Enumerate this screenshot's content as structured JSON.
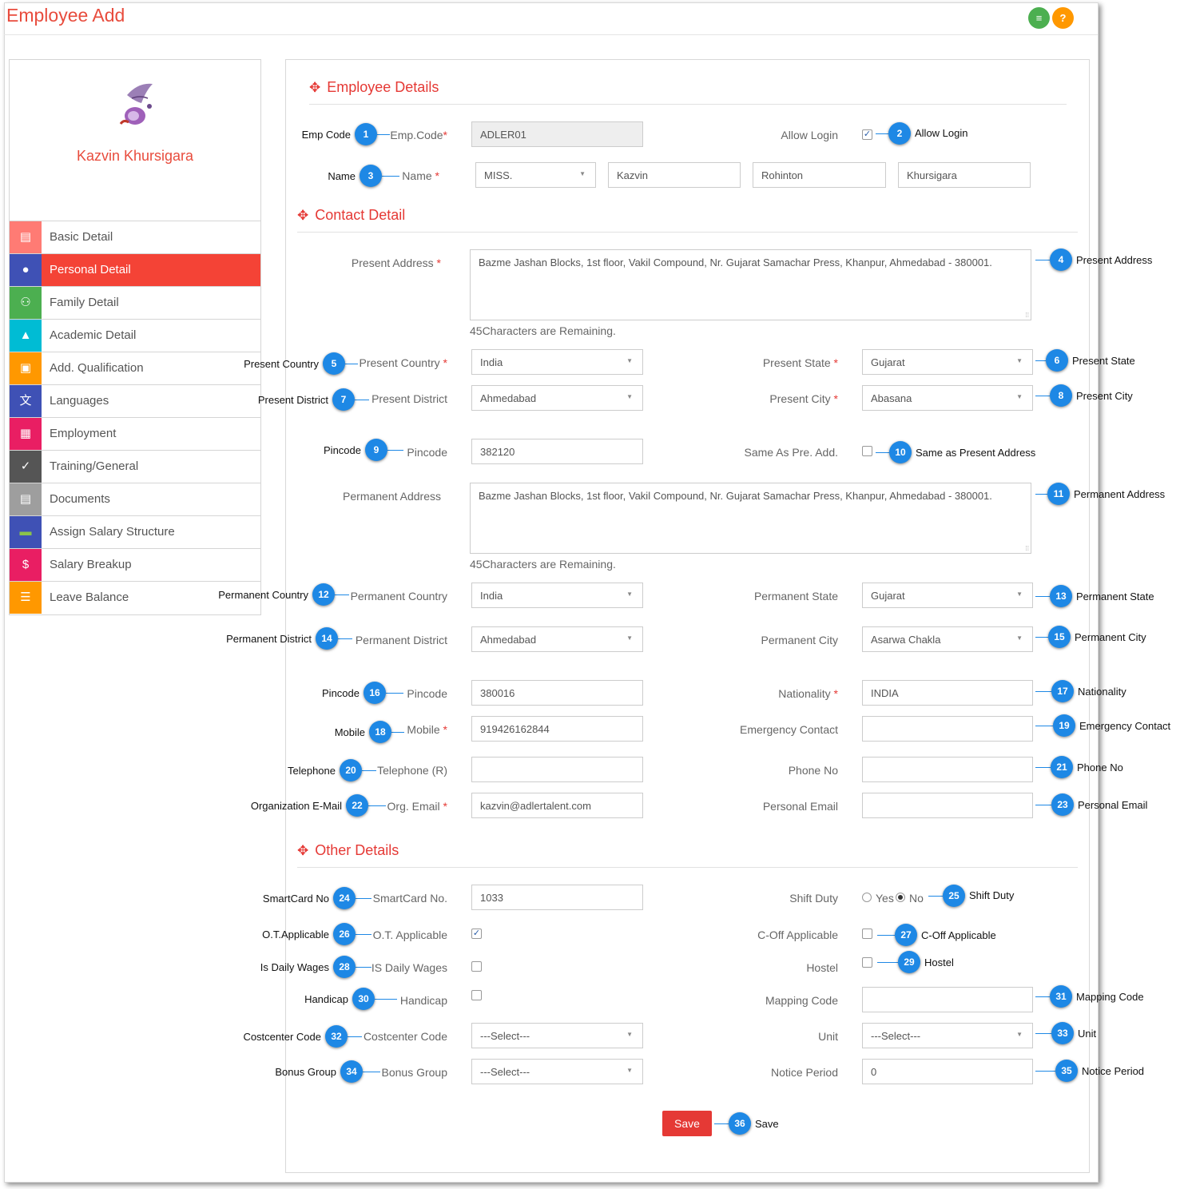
{
  "header": {
    "title": "Employee Add",
    "menu_icon": "menu-icon",
    "help_label": "?"
  },
  "colors": {
    "accent": "#e53935",
    "badge": "#1e88e5",
    "menu_green": "#4caf50",
    "help_orange": "#ff9800"
  },
  "profile": {
    "name": "Kazvin Khursigara",
    "logo": "bird-logo"
  },
  "sidebar": {
    "items": [
      {
        "label": "Basic Detail",
        "icon": "file-icon",
        "color": "#ff7b74"
      },
      {
        "label": "Personal Detail",
        "icon": "person-icon",
        "color": "#3f51b5",
        "active": true
      },
      {
        "label": "Family Detail",
        "icon": "people-icon",
        "color": "#4caf50"
      },
      {
        "label": "Academic Detail",
        "icon": "graduation-cap-icon",
        "color": "#00bcd4"
      },
      {
        "label": "Add. Qualification",
        "icon": "clipboard-icon",
        "color": "#ff9800"
      },
      {
        "label": "Languages",
        "icon": "translate-icon",
        "color": "#3f51b5"
      },
      {
        "label": "Employment",
        "icon": "id-card-icon",
        "color": "#e91e63"
      },
      {
        "label": "Training/General",
        "icon": "checklist-icon",
        "color": "#555555"
      },
      {
        "label": "Documents",
        "icon": "document-icon",
        "color": "#9e9e9e"
      },
      {
        "label": "Assign Salary Structure",
        "icon": "money-icon",
        "color": "#3f51b5"
      },
      {
        "label": "Salary Breakup",
        "icon": "dollar-icon",
        "color": "#e91e63"
      },
      {
        "label": "Leave Balance",
        "icon": "list-icon",
        "color": "#ff9800"
      }
    ]
  },
  "sections": {
    "employee": "Employee Details",
    "contact": "Contact Detail",
    "other": "Other Details"
  },
  "form": {
    "emp_code": {
      "label": "Emp.Code",
      "value": "ADLER01"
    },
    "allow_login": {
      "label": "Allow Login",
      "checked": true
    },
    "name": {
      "label": "Name",
      "title": "MISS.",
      "first": "Kazvin",
      "middle": "Rohinton",
      "last": "Khursigara"
    },
    "present_address": {
      "label": "Present Address",
      "value": "Bazme Jashan Blocks, 1st floor, Vakil Compound, Nr. Gujarat Samachar Press, Khanpur, Ahmedabad - 380001."
    },
    "present_remaining": "45Characters are Remaining.",
    "present_country": {
      "label": "Present Country",
      "value": "India"
    },
    "present_state": {
      "label": "Present State",
      "value": "Gujarat"
    },
    "present_district": {
      "label": "Present District",
      "value": "Ahmedabad"
    },
    "present_city": {
      "label": "Present City",
      "value": "Abasana"
    },
    "pincode": {
      "label": "Pincode",
      "value": "382120"
    },
    "same_as": {
      "label": "Same As Pre. Add.",
      "checked": false
    },
    "permanent_address": {
      "label": "Permanent Address",
      "value": "Bazme Jashan Blocks, 1st floor, Vakil Compound, Nr. Gujarat Samachar Press, Khanpur, Ahmedabad - 380001."
    },
    "permanent_remaining": "45Characters are Remaining.",
    "permanent_country": {
      "label": "Permanent Country",
      "value": "India"
    },
    "permanent_state": {
      "label": "Permanent State",
      "value": "Gujarat"
    },
    "permanent_district": {
      "label": "Permanent District",
      "value": "Ahmedabad"
    },
    "permanent_city": {
      "label": "Permanent City",
      "value": "Asarwa Chakla"
    },
    "perm_pincode": {
      "label": "Pincode",
      "value": "380016"
    },
    "nationality": {
      "label": "Nationality",
      "value": "INDIA"
    },
    "mobile": {
      "label": "Mobile",
      "value": "919426162844"
    },
    "emergency": {
      "label": "Emergency Contact",
      "value": ""
    },
    "telephone": {
      "label": "Telephone (R)",
      "value": ""
    },
    "phone_no": {
      "label": "Phone No",
      "value": ""
    },
    "org_email": {
      "label": "Org. Email",
      "value": "kazvin@adlertalent.com"
    },
    "personal_email": {
      "label": "Personal Email",
      "value": ""
    },
    "smartcard": {
      "label": "SmartCard No.",
      "value": "1033"
    },
    "shift_duty": {
      "label": "Shift Duty",
      "yes": "Yes",
      "no": "No",
      "selected": "No"
    },
    "ot": {
      "label": "O.T. Applicable",
      "checked": true
    },
    "coff": {
      "label": "C-Off Applicable",
      "checked": false
    },
    "daily_wages": {
      "label": "IS Daily Wages",
      "checked": false
    },
    "hostel": {
      "label": "Hostel",
      "checked": false
    },
    "handicap": {
      "label": "Handicap",
      "checked": false
    },
    "mapping_code": {
      "label": "Mapping Code",
      "value": ""
    },
    "costcenter": {
      "label": "Costcenter Code",
      "value": "---Select---"
    },
    "unit": {
      "label": "Unit",
      "value": "---Select---"
    },
    "bonus_group": {
      "label": "Bonus Group",
      "value": "---Select---"
    },
    "notice_period": {
      "label": "Notice Period",
      "value": "0"
    },
    "save_label": "Save"
  },
  "annotations": [
    {
      "n": "1",
      "text": "Emp Code"
    },
    {
      "n": "2",
      "text": "Allow Login"
    },
    {
      "n": "3",
      "text": "Name"
    },
    {
      "n": "4",
      "text": "Present Address"
    },
    {
      "n": "5",
      "text": "Present Country"
    },
    {
      "n": "6",
      "text": "Present State"
    },
    {
      "n": "7",
      "text": "Present District"
    },
    {
      "n": "8",
      "text": "Present City"
    },
    {
      "n": "9",
      "text": "Pincode"
    },
    {
      "n": "10",
      "text": "Same as Present  Address"
    },
    {
      "n": "11",
      "text": "Permanent Address"
    },
    {
      "n": "12",
      "text": "Permanent Country"
    },
    {
      "n": "13",
      "text": "Permanent State"
    },
    {
      "n": "14",
      "text": "Permanent District"
    },
    {
      "n": "15",
      "text": "Permanent City"
    },
    {
      "n": "16",
      "text": "Pincode"
    },
    {
      "n": "17",
      "text": "Nationality"
    },
    {
      "n": "18",
      "text": "Mobile"
    },
    {
      "n": "19",
      "text": "Emergency Contact"
    },
    {
      "n": "20",
      "text": "Telephone"
    },
    {
      "n": "21",
      "text": "Phone No"
    },
    {
      "n": "22",
      "text": "Organization E-Mail"
    },
    {
      "n": "23",
      "text": "Personal Email"
    },
    {
      "n": "24",
      "text": "SmartCard No"
    },
    {
      "n": "25",
      "text": "Shift Duty"
    },
    {
      "n": "26",
      "text": "O.T.Applicable"
    },
    {
      "n": "27",
      "text": "C-Off Applicable"
    },
    {
      "n": "28",
      "text": "Is Daily Wages"
    },
    {
      "n": "29",
      "text": "Hostel"
    },
    {
      "n": "30",
      "text": "Handicap"
    },
    {
      "n": "31",
      "text": "Mapping Code"
    },
    {
      "n": "32",
      "text": "Costcenter Code"
    },
    {
      "n": "33",
      "text": "Unit"
    },
    {
      "n": "34",
      "text": "Bonus Group"
    },
    {
      "n": "35",
      "text": "Notice Period"
    },
    {
      "n": "36",
      "text": "Save"
    }
  ]
}
